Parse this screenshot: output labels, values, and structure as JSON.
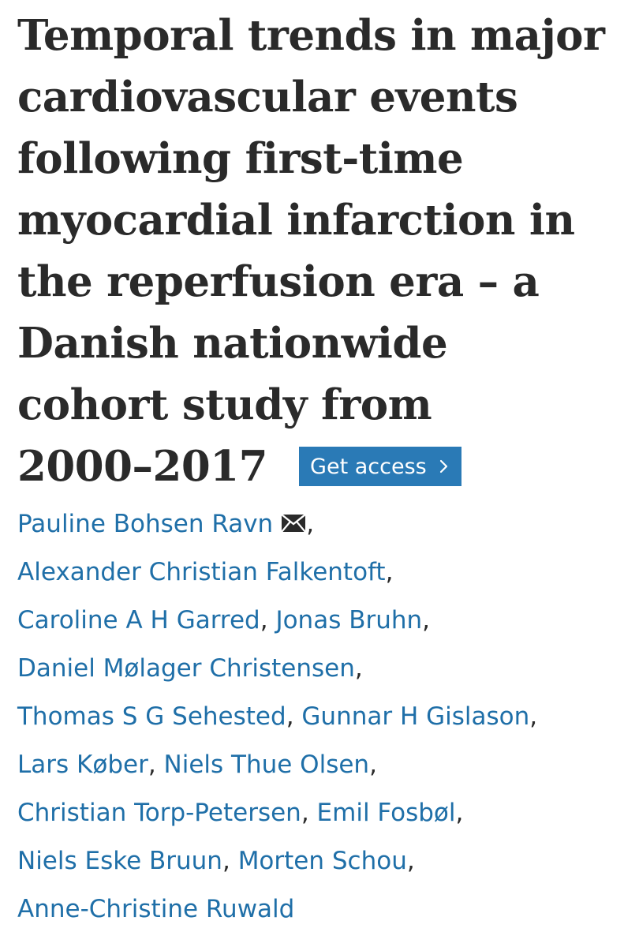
{
  "article": {
    "title_lines": [
      "Temporal trends in major",
      "cardiovascular events",
      "following first-time",
      "myocardial infarction in",
      "the reperfusion era – a",
      "Danish nationwide",
      "cohort study from",
      "2000–2017"
    ],
    "get_access_label": "Get access",
    "authors": [
      "Pauline Bohsen Ravn",
      "Alexander Christian Falkentoft",
      "Caroline A H Garred",
      "Jonas Bruhn",
      "Daniel Mølager Christensen",
      "Thomas S G Sehested",
      "Gunnar H Gislason",
      "Lars Køber",
      "Niels Thue Olsen",
      "Christian Torp-Petersen",
      "Emil Fosbøl",
      "Niels Eske Bruun",
      "Morten Schou",
      "Anne-Christine Ruwald"
    ],
    "separator": ",",
    "icons": {
      "corresponding_author": "mail-icon",
      "access_arrow": "chevron-right-icon"
    },
    "colors": {
      "title": "#2a2a2a",
      "link": "#1f6fa8",
      "button_bg": "#2a7ab6",
      "button_text": "#ffffff"
    }
  }
}
